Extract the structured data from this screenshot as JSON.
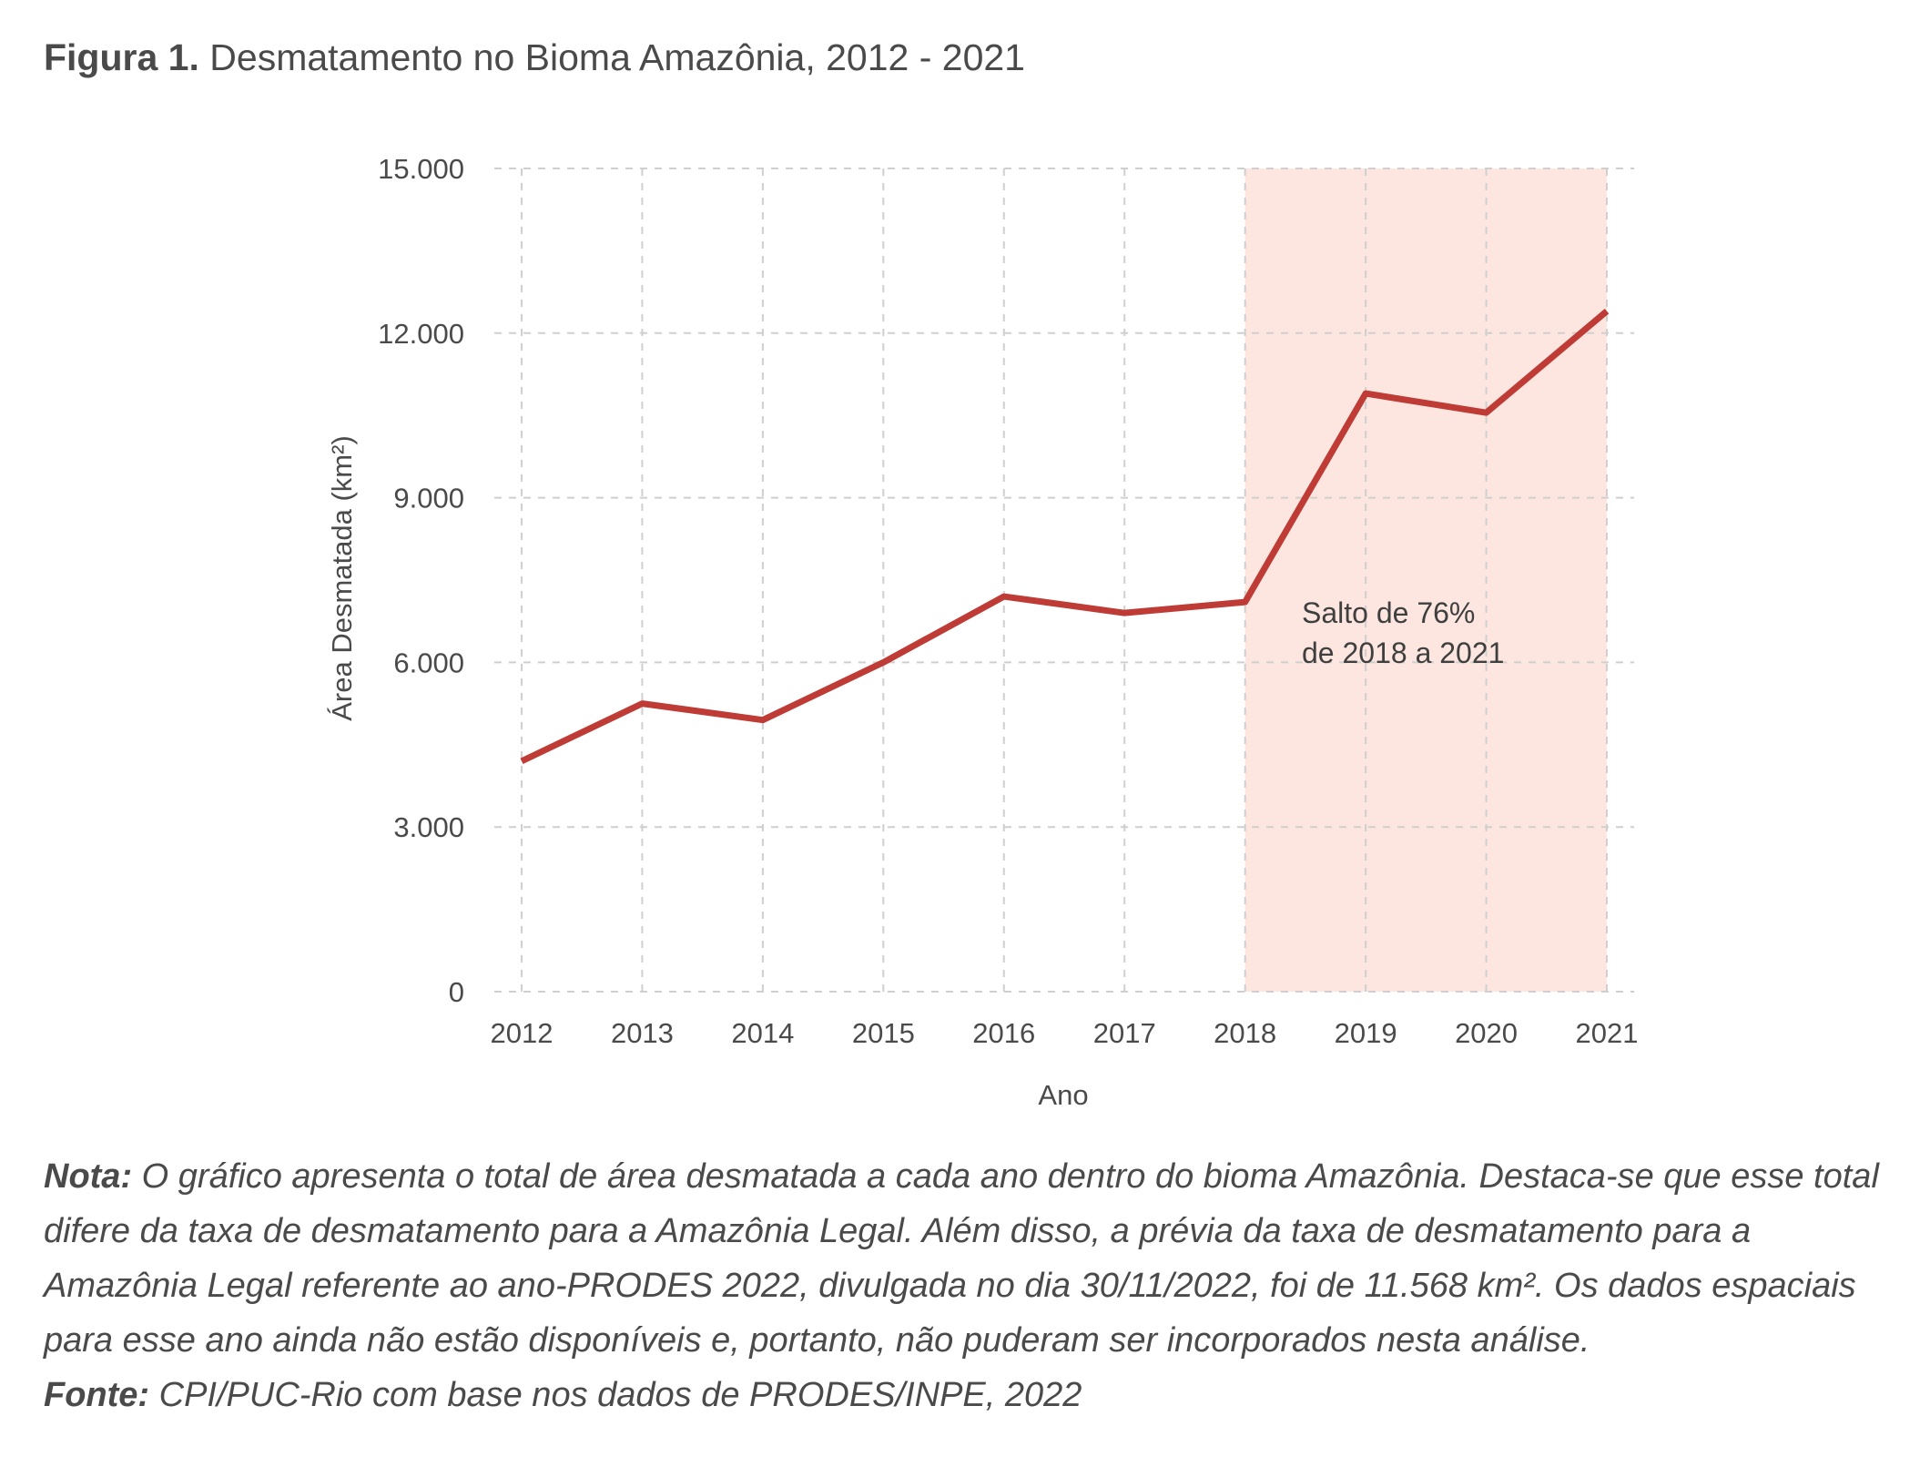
{
  "figure": {
    "label": "Figura 1.",
    "title": "Desmatamento no Bioma Amazônia, 2012 - 2021"
  },
  "chart_data": {
    "type": "line",
    "title": "Desmatamento no Bioma Amazônia, 2012 - 2021",
    "xlabel": "Ano",
    "ylabel": "Área Desmatada (km²)",
    "x": [
      2012,
      2013,
      2014,
      2015,
      2016,
      2017,
      2018,
      2019,
      2020,
      2021
    ],
    "series": [
      {
        "values": [
          4200,
          5250,
          4950,
          6000,
          7200,
          6900,
          7100,
          10900,
          10550,
          12400
        ]
      }
    ],
    "ylim": [
      0,
      15000
    ],
    "yticks": [
      0,
      3000,
      6000,
      9000,
      12000,
      15000
    ],
    "ytick_labels": [
      "0",
      "3.000",
      "6.000",
      "9.000",
      "12.000",
      "15.000"
    ],
    "xtick_labels": [
      "2012",
      "2013",
      "2014",
      "2015",
      "2016",
      "2017",
      "2018",
      "2019",
      "2020",
      "2021"
    ],
    "grid": true,
    "highlight": {
      "from": 2018,
      "to": 2021,
      "color": "#fce6df"
    },
    "annotation": [
      "Salto de 76%",
      "de 2018 a 2021"
    ],
    "line_color": "#bf3b35"
  },
  "notes": {
    "nota_label": "Nota:",
    "nota_text": " O gráfico apresenta o total de área desmatada a cada ano dentro do bioma Amazônia. Destaca-se que esse total difere da taxa de desmatamento para a Amazônia Legal. Além disso, a prévia da taxa de desmatamento para a Amazônia Legal referente ao ano-PRODES 2022, divulgada no dia 30/11/2022, foi de 11.568 km². Os dados espaciais para esse ano ainda não estão disponíveis e, portanto, não puderam ser incorporados nesta análise.",
    "fonte_label": "Fonte:",
    "fonte_text": " CPI/PUC-Rio com base nos dados de PRODES/INPE, 2022"
  }
}
